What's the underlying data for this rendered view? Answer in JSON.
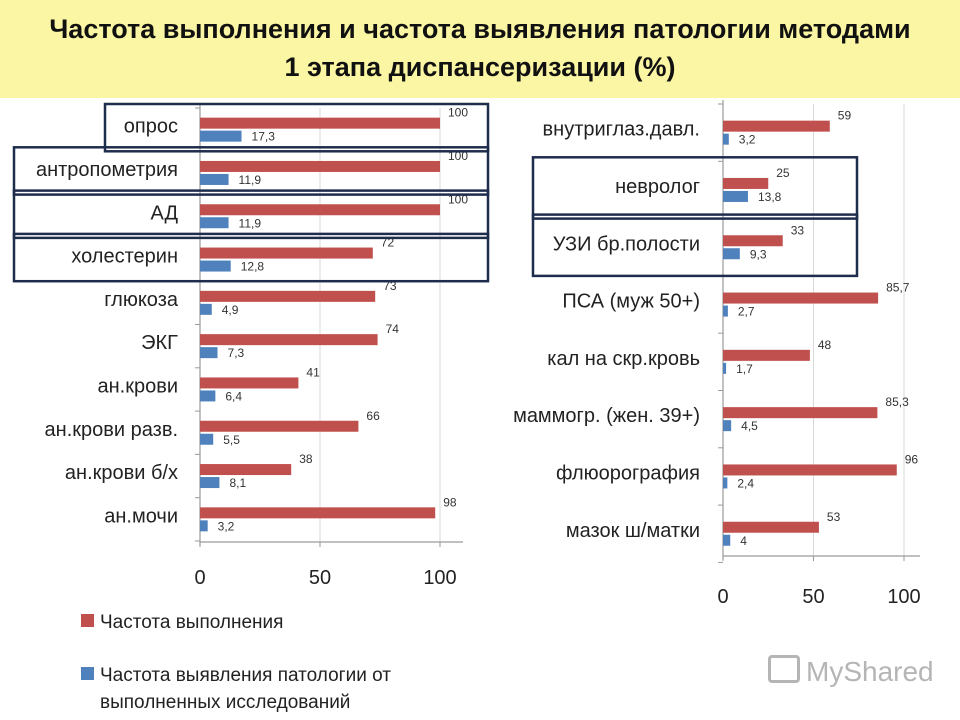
{
  "title": {
    "line1": "Частота выполнения и частота выявления патологии методами",
    "line2": "1 этапа диспансеризации (%)"
  },
  "colors": {
    "series1": "#c0504d",
    "series2": "#4f81bd",
    "highlight_box": "#1f2d4d"
  },
  "legend": {
    "items": [
      {
        "label_lines": [
          "Частота выполнения"
        ]
      },
      {
        "label_lines": [
          "Частота выявления патологии от",
          "выполненных исследований"
        ]
      }
    ]
  },
  "chart_data": [
    {
      "type": "bar",
      "orientation": "horizontal",
      "categories": [
        "опрос",
        "антропометрия",
        "АД",
        "холестерин",
        "глюкоза",
        "ЭКГ",
        "ан.крови",
        "ан.крови разв.",
        "ан.крови б/х",
        "ан.мочи"
      ],
      "series": [
        {
          "name": "Частота выполнения",
          "values": [
            100,
            100,
            100,
            72,
            73,
            74,
            41,
            66,
            38,
            98
          ],
          "value_labels": [
            "100",
            "100",
            "100",
            "72",
            "73",
            "74",
            "41",
            "66",
            "38",
            "98"
          ]
        },
        {
          "name": "Частота выявления патологии от выполненных исследований",
          "values": [
            17.3,
            11.9,
            11.9,
            12.8,
            4.9,
            7.3,
            6.4,
            5.5,
            8.1,
            3.2
          ],
          "value_labels": [
            "17,3",
            "11,9",
            "11,9",
            "12,8",
            "4,9",
            "7,3",
            "6,4",
            "5,5",
            "8,1",
            "3,2"
          ]
        }
      ],
      "xlim": [
        0,
        110
      ],
      "xticks": [
        "0",
        "50",
        "100"
      ],
      "highlighted": [
        "опрос",
        "антропометрия",
        "АД",
        "холестерин"
      ]
    },
    {
      "type": "bar",
      "orientation": "horizontal",
      "categories": [
        "внутриглаз.давл.",
        "невролог",
        "УЗИ бр.полости",
        "ПСА (муж 50+)",
        "кал на скр.кровь",
        "маммогр. (жен. 39+)",
        "флюорография",
        "мазок ш/матки"
      ],
      "series": [
        {
          "name": "Частота выполнения",
          "values": [
            59,
            25,
            33,
            85.7,
            48,
            85.3,
            96,
            53
          ],
          "value_labels": [
            "59",
            "25",
            "33",
            "85,7",
            "48",
            "85,3",
            "96",
            "53"
          ]
        },
        {
          "name": "Частота выявления патологии от выполненных исследований",
          "values": [
            3.2,
            13.8,
            9.3,
            2.7,
            1.7,
            4.5,
            2.4,
            4
          ],
          "value_labels": [
            "3,2",
            "13,8",
            "9,3",
            "2,7",
            "1,7",
            "4,5",
            "2,4",
            "4"
          ]
        }
      ],
      "xlim": [
        0,
        110
      ],
      "xticks": [
        "0",
        "50",
        "100"
      ],
      "highlighted": [
        "невролог",
        "УЗИ бр.полости"
      ]
    }
  ],
  "watermark": {
    "text": "MyShared"
  }
}
